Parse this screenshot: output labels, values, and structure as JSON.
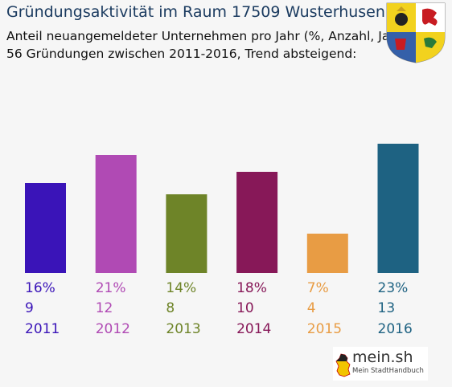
{
  "header": {
    "title": "Gründungsaktivität im Raum 17509 Wusterhusen",
    "subtitle1": "Anteil neuangemeldeter Unternehmen pro Jahr (%, Anzahl, Jahr)",
    "subtitle2": "56 Gründungen zwischen 2011-2016, Trend absteigend:"
  },
  "logo": {
    "name": "mein.sh",
    "tagline": "Mein StadtHandbuch"
  },
  "chart_data": {
    "type": "bar",
    "categories": [
      "2011",
      "2012",
      "2013",
      "2014",
      "2015",
      "2016"
    ],
    "values": [
      16,
      21,
      14,
      18,
      7,
      23
    ],
    "value_labels": [
      "16%",
      "21%",
      "14%",
      "18%",
      "7%",
      "23%"
    ],
    "counts": [
      9,
      12,
      8,
      10,
      4,
      13
    ],
    "colors": [
      "#3a14b8",
      "#b04ab4",
      "#6e8428",
      "#871858",
      "#e89c44",
      "#1e6282"
    ],
    "unit": "%",
    "ylim": [
      0,
      23
    ],
    "grid": false,
    "legend": "none"
  }
}
